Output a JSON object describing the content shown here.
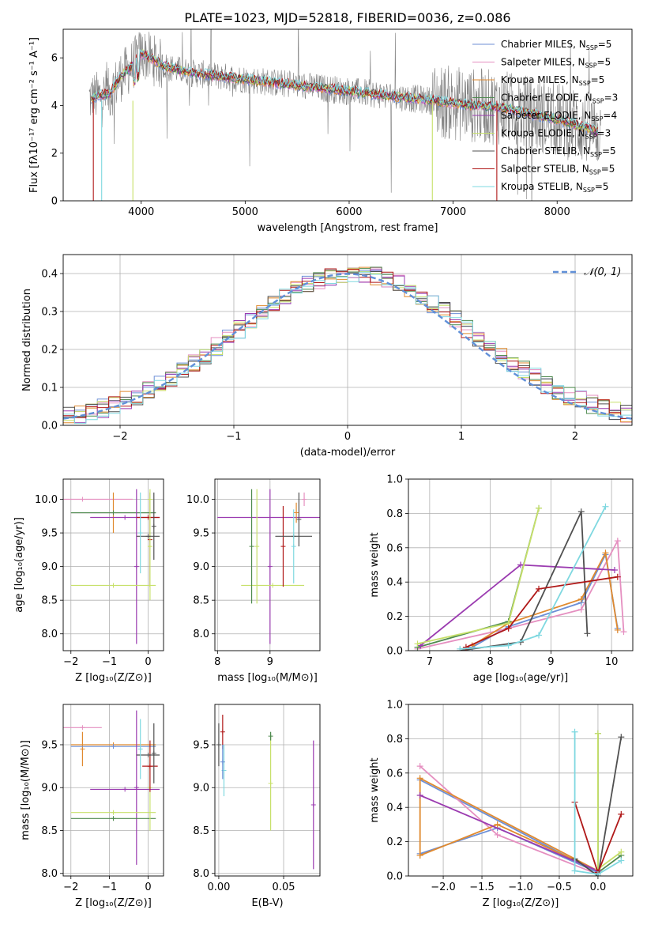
{
  "figure_title": "PLATE=1023, MJD=52818, FIBERID=0036, z=0.086",
  "colors": {
    "chabrier_miles": "#6c8fd6",
    "salpeter_miles": "#e58fc0",
    "kroupa_miles": "#e08a2f",
    "chabrier_elodie": "#4e8a4e",
    "salpeter_elodie": "#9b3bb0",
    "kroupa_elodie": "#c7e06a",
    "chabrier_stelib": "#505050",
    "salpeter_stelib": "#b01818",
    "kroupa_stelib": "#7fd8e0",
    "data": "#808080",
    "normal": "#6190d8"
  },
  "chart_data": [
    {
      "id": "spectrum",
      "type": "line",
      "xlabel": "wavelength [Angstrom, rest frame]",
      "ylabel": "Flux [fλ10⁻¹⁷ erg cm⁻² s⁻¹ A⁻¹]",
      "xlim": [
        3250,
        8720
      ],
      "ylim": [
        0,
        7.2
      ],
      "xticks": [
        4000,
        5000,
        6000,
        7000,
        8000
      ],
      "yticks": [
        0,
        2,
        4,
        6
      ],
      "legend_position": "upper right",
      "legend": [
        {
          "key": "chabrier_miles",
          "label": "Chabrier MILES, N",
          "sub": "SSP",
          "suffix": "=5"
        },
        {
          "key": "salpeter_miles",
          "label": "Salpeter MILES, N",
          "sub": "SSP",
          "suffix": "=5"
        },
        {
          "key": "kroupa_miles",
          "label": "Kroupa MILES, N",
          "sub": "SSP",
          "suffix": "=5"
        },
        {
          "key": "chabrier_elodie",
          "label": "Chabrier ELODIE, N",
          "sub": "SSP",
          "suffix": "=3"
        },
        {
          "key": "salpeter_elodie",
          "label": "Salpeter ELODIE, N",
          "sub": "SSP",
          "suffix": "=4"
        },
        {
          "key": "kroupa_elodie",
          "label": "Kroupa ELODIE, N",
          "sub": "SSP",
          "suffix": "=3"
        },
        {
          "key": "chabrier_stelib",
          "label": "Chabrier STELIB, N",
          "sub": "SSP",
          "suffix": "=5"
        },
        {
          "key": "salpeter_stelib",
          "label": "Salpeter STELIB, N",
          "sub": "SSP",
          "suffix": "=5"
        },
        {
          "key": "kroupa_stelib",
          "label": "Kroupa STELIB, N",
          "sub": "SSP",
          "suffix": "=5"
        }
      ],
      "continuum": {
        "x": [
          3500,
          3600,
          3700,
          3800,
          3900,
          4000,
          4100,
          4200,
          4300,
          4500,
          4700,
          5000,
          5300,
          5600,
          6000,
          6300,
          6600,
          6900,
          7200,
          7500,
          7800,
          8100,
          8400
        ],
        "y": [
          4.3,
          4.4,
          4.5,
          5.2,
          5.6,
          6.2,
          5.95,
          5.7,
          5.55,
          5.35,
          5.25,
          5.1,
          4.95,
          4.8,
          4.6,
          4.45,
          4.3,
          4.15,
          4.0,
          3.9,
          3.6,
          3.3,
          2.9
        ]
      }
    },
    {
      "id": "residual_histogram",
      "type": "line",
      "xlabel": "(data-model)/error",
      "ylabel": "Normed distribution",
      "xlim": [
        -2.5,
        2.5
      ],
      "ylim": [
        0,
        0.45
      ],
      "xticks": [
        -2,
        -1,
        0,
        1,
        2
      ],
      "yticks": [
        0.0,
        0.1,
        0.2,
        0.3,
        0.4
      ],
      "legend_label": "𝒩(0, 1)",
      "legend_position": "upper right",
      "bin_width": 0.1
    },
    {
      "id": "age_vs_z",
      "type": "scatter",
      "xlabel": "Z [log₁₀(Z/Z⊙)]",
      "ylabel": "age  [log₁₀(age/yr)]",
      "xlim": [
        -2.2,
        0.4
      ],
      "ylim": [
        7.75,
        10.3
      ],
      "xticks": [
        -2,
        -1,
        0
      ],
      "yticks": [
        8.0,
        8.5,
        9.0,
        9.5,
        10.0
      ],
      "points": [
        {
          "s": "salpeter_miles",
          "x": -1.7,
          "xerr": 1.3,
          "y": 10.0,
          "yerr": 0.0
        },
        {
          "s": "kroupa_miles",
          "x": -0.9,
          "xerr": 1.1,
          "y": 9.8,
          "yerr": 0.3
        },
        {
          "s": "chabrier_miles",
          "x": -0.9,
          "xerr": 1.1,
          "y": 9.8,
          "yerr": 0.0
        },
        {
          "s": "chabrier_elodie",
          "x": -0.9,
          "xerr": 1.1,
          "y": 9.8,
          "yerr": 0.0
        },
        {
          "s": "salpeter_elodie",
          "x": -0.6,
          "xerr": 0.9,
          "y": 9.73,
          "yerr": 0.0
        },
        {
          "s": "salpeter_elodie",
          "x": -0.3,
          "xerr": 0.0,
          "y": 9.0,
          "yerr": 1.15
        },
        {
          "s": "salpeter_stelib",
          "x": 0.05,
          "xerr": 0.0,
          "y": 9.4,
          "yerr": 0.7
        },
        {
          "s": "salpeter_stelib",
          "x": 0.0,
          "xerr": 0.3,
          "y": 9.73,
          "yerr": 0.0
        },
        {
          "s": "kroupa_elodie",
          "x": -0.9,
          "xerr": 1.1,
          "y": 8.72,
          "yerr": 0.0
        },
        {
          "s": "kroupa_elodie",
          "x": 0.05,
          "xerr": 0.0,
          "y": 9.3,
          "yerr": 0.8
        },
        {
          "s": "chabrier_stelib",
          "x": 0.0,
          "xerr": 0.3,
          "y": 9.45,
          "yerr": 0.0
        },
        {
          "s": "chabrier_stelib",
          "x": 0.15,
          "xerr": 0.0,
          "y": 9.6,
          "yerr": 0.5
        },
        {
          "s": "kroupa_stelib",
          "x": -0.2,
          "xerr": 0.0,
          "y": 9.5,
          "yerr": 0.6
        },
        {
          "s": "kroupa_elodie",
          "x": 0.05,
          "xerr": 0.0,
          "y": 10.0,
          "yerr": 0.15
        }
      ]
    },
    {
      "id": "age_vs_mass",
      "type": "scatter",
      "xlabel": "mass [log₁₀(M/M⊙)]",
      "ylabel": "",
      "xlim": [
        7.95,
        9.95
      ],
      "ylim": [
        7.75,
        10.3
      ],
      "xticks": [
        8,
        9
      ],
      "yticks": [
        8.0,
        8.5,
        9.0,
        9.5,
        10.0
      ],
      "points": [
        {
          "s": "salpeter_elodie",
          "x": 9.0,
          "xerr": 1.0,
          "y": 9.73,
          "yerr": 0.0
        },
        {
          "s": "salpeter_elodie",
          "x": 9.0,
          "xerr": 0.0,
          "y": 9.0,
          "yerr": 1.15
        },
        {
          "s": "kroupa_elodie",
          "x": 9.05,
          "xerr": 0.6,
          "y": 8.72,
          "yerr": 0.0
        },
        {
          "s": "chabrier_elodie",
          "x": 8.65,
          "xerr": 0.0,
          "y": 9.3,
          "yerr": 0.85
        },
        {
          "s": "kroupa_elodie",
          "x": 8.75,
          "xerr": 0.0,
          "y": 9.3,
          "yerr": 0.85
        },
        {
          "s": "salpeter_stelib",
          "x": 9.25,
          "xerr": 0.0,
          "y": 9.3,
          "yerr": 0.6
        },
        {
          "s": "chabrier_stelib",
          "x": 9.45,
          "xerr": 0.35,
          "y": 9.45,
          "yerr": 0.0
        },
        {
          "s": "kroupa_stelib",
          "x": 9.45,
          "xerr": 0.0,
          "y": 9.3,
          "yerr": 0.55
        },
        {
          "s": "chabrier_stelib",
          "x": 9.55,
          "xerr": 0.0,
          "y": 9.7,
          "yerr": 0.4
        },
        {
          "s": "salpeter_miles",
          "x": 9.65,
          "xerr": 0.0,
          "y": 10.0,
          "yerr": 0.1
        },
        {
          "s": "kroupa_miles",
          "x": 9.5,
          "xerr": 0.0,
          "y": 9.8,
          "yerr": 0.15
        }
      ]
    },
    {
      "id": "mass_weight_vs_age",
      "type": "line",
      "xlabel": "age  [log₁₀(age/yr)]",
      "ylabel": "mass weight",
      "xlim": [
        6.65,
        10.35
      ],
      "ylim": [
        0,
        1.0
      ],
      "xticks": [
        7,
        8,
        9,
        10
      ],
      "yticks": [
        0.0,
        0.2,
        0.4,
        0.6,
        0.8,
        1.0
      ],
      "series": [
        {
          "s": "chabrier_miles",
          "x": [
            7.7,
            8.3,
            9.5,
            9.9,
            10.1
          ],
          "y": [
            0.02,
            0.14,
            0.28,
            0.56,
            0.13
          ]
        },
        {
          "s": "salpeter_miles",
          "x": [
            6.8,
            8.3,
            9.5,
            10.1,
            10.2
          ],
          "y": [
            0.01,
            0.13,
            0.24,
            0.64,
            0.11
          ]
        },
        {
          "s": "kroupa_miles",
          "x": [
            7.7,
            8.3,
            9.5,
            9.9,
            10.1
          ],
          "y": [
            0.03,
            0.16,
            0.3,
            0.57,
            0.12
          ]
        },
        {
          "s": "chabrier_elodie",
          "x": [
            6.8,
            8.3,
            8.8
          ],
          "y": [
            0.02,
            0.17,
            0.83
          ]
        },
        {
          "s": "salpeter_elodie",
          "x": [
            6.85,
            8.5,
            10.05
          ],
          "y": [
            0.03,
            0.5,
            0.47
          ]
        },
        {
          "s": "kroupa_elodie",
          "x": [
            6.8,
            8.3,
            8.8
          ],
          "y": [
            0.04,
            0.16,
            0.83
          ]
        },
        {
          "s": "chabrier_stelib",
          "x": [
            7.5,
            8.5,
            9.5,
            9.6
          ],
          "y": [
            0.0,
            0.05,
            0.81,
            0.1
          ]
        },
        {
          "s": "salpeter_stelib",
          "x": [
            7.6,
            8.3,
            8.8,
            10.1
          ],
          "y": [
            0.02,
            0.13,
            0.36,
            0.43
          ]
        },
        {
          "s": "kroupa_stelib",
          "x": [
            7.5,
            8.3,
            8.8,
            9.9
          ],
          "y": [
            0.01,
            0.03,
            0.09,
            0.84
          ]
        }
      ]
    },
    {
      "id": "mass_vs_z",
      "type": "scatter",
      "xlabel": "Z [log₁₀(Z/Z⊙)]",
      "ylabel": "mass [log₁₀(M/M⊙)]",
      "xlim": [
        -2.2,
        0.4
      ],
      "ylim": [
        7.97,
        9.97
      ],
      "xticks": [
        -2,
        -1,
        0
      ],
      "yticks": [
        8.0,
        8.5,
        9.0,
        9.5
      ],
      "points": [
        {
          "s": "salpeter_miles",
          "x": -1.7,
          "xerr": 0.5,
          "y": 9.7,
          "yerr": 0.0
        },
        {
          "s": "kroupa_miles",
          "x": -0.9,
          "xerr": 1.1,
          "y": 9.5,
          "yerr": 0.0
        },
        {
          "s": "kroupa_miles",
          "x": -1.7,
          "xerr": 0.0,
          "y": 9.45,
          "yerr": 0.2
        },
        {
          "s": "chabrier_miles",
          "x": -0.9,
          "xerr": 1.1,
          "y": 9.48,
          "yerr": 0.0
        },
        {
          "s": "salpeter_elodie",
          "x": -0.6,
          "xerr": 0.9,
          "y": 8.98,
          "yerr": 0.0
        },
        {
          "s": "salpeter_elodie",
          "x": -0.3,
          "xerr": 0.0,
          "y": 9.0,
          "yerr": 0.9
        },
        {
          "s": "kroupa_elodie",
          "x": -0.9,
          "xerr": 1.1,
          "y": 8.71,
          "yerr": 0.0
        },
        {
          "s": "chabrier_elodie",
          "x": -0.9,
          "xerr": 1.1,
          "y": 8.64,
          "yerr": 0.0
        },
        {
          "s": "kroupa_elodie",
          "x": 0.05,
          "xerr": 0.0,
          "y": 9.0,
          "yerr": 0.5
        },
        {
          "s": "salpeter_stelib",
          "x": 0.05,
          "xerr": 0.2,
          "y": 9.25,
          "yerr": 0.0
        },
        {
          "s": "salpeter_stelib",
          "x": 0.05,
          "xerr": 0.0,
          "y": 9.25,
          "yerr": 0.3
        },
        {
          "s": "chabrier_stelib",
          "x": 0.0,
          "xerr": 0.3,
          "y": 9.38,
          "yerr": 0.0
        },
        {
          "s": "chabrier_stelib",
          "x": 0.15,
          "xerr": 0.0,
          "y": 9.4,
          "yerr": 0.35
        },
        {
          "s": "kroupa_stelib",
          "x": -0.2,
          "xerr": 0.0,
          "y": 9.45,
          "yerr": 0.35
        }
      ]
    },
    {
      "id": "mass_vs_ebv",
      "type": "scatter",
      "xlabel": "E(B-V)",
      "ylabel": "",
      "xlim": [
        -0.003,
        0.078
      ],
      "ylim": [
        7.97,
        9.97
      ],
      "xticks": [
        0.0,
        0.05
      ],
      "xticklabels": [
        "0.00",
        "0.05"
      ],
      "yticks": [
        8.0,
        8.5,
        9.0,
        9.5
      ],
      "points": [
        {
          "s": "chabrier_stelib",
          "x": 0.0,
          "xerr": 0.0,
          "y": 9.5,
          "yerr": 0.25
        },
        {
          "s": "salpeter_stelib",
          "x": 0.003,
          "xerr": 0.0,
          "y": 9.65,
          "yerr": 0.2
        },
        {
          "s": "kroupa_stelib",
          "x": 0.004,
          "xerr": 0.0,
          "y": 9.2,
          "yerr": 0.3
        },
        {
          "s": "chabrier_miles",
          "x": 0.003,
          "xerr": 0.0,
          "y": 9.3,
          "yerr": 0.2
        },
        {
          "s": "kroupa_elodie",
          "x": 0.04,
          "xerr": 0.0,
          "y": 9.05,
          "yerr": 0.55
        },
        {
          "s": "chabrier_elodie",
          "x": 0.04,
          "xerr": 0.0,
          "y": 9.6,
          "yerr": 0.05
        },
        {
          "s": "salpeter_elodie",
          "x": 0.073,
          "xerr": 0.0,
          "y": 8.8,
          "yerr": 0.75
        }
      ]
    },
    {
      "id": "mass_weight_vs_z",
      "type": "line",
      "xlabel": "Z [log₁₀(Z/Z⊙)]",
      "ylabel": "mass weight",
      "xlim": [
        -2.45,
        0.45
      ],
      "ylim": [
        0,
        1.0
      ],
      "xticks": [
        -2.0,
        -1.5,
        -1.0,
        -0.5,
        0.0
      ],
      "xticklabels": [
        "−2.0",
        "−1.5",
        "−1.0",
        "−0.5",
        "0.0"
      ],
      "yticks": [
        0.0,
        0.2,
        0.4,
        0.6,
        0.8,
        1.0
      ],
      "series": [
        {
          "s": "chabrier_miles",
          "x": [
            -2.3,
            -1.3,
            0.0,
            -2.3
          ],
          "y": [
            0.13,
            0.28,
            0.02,
            0.56
          ]
        },
        {
          "s": "salpeter_miles",
          "x": [
            -2.3,
            -1.3,
            0.0
          ],
          "y": [
            0.64,
            0.24,
            0.01
          ]
        },
        {
          "s": "kroupa_miles",
          "x": [
            -2.3,
            -1.3,
            0.0,
            -2.3,
            -2.3
          ],
          "y": [
            0.12,
            0.3,
            0.03,
            0.57,
            0.12
          ]
        },
        {
          "s": "chabrier_elodie",
          "x": [
            0.0,
            0.0,
            0.3
          ],
          "y": [
            0.83,
            0.02,
            0.12
          ]
        },
        {
          "s": "salpeter_elodie",
          "x": [
            -2.3,
            0.0
          ],
          "y": [
            0.47,
            0.03
          ]
        },
        {
          "s": "kroupa_elodie",
          "x": [
            0.0,
            0.0,
            0.3
          ],
          "y": [
            0.83,
            0.04,
            0.14
          ]
        },
        {
          "s": "chabrier_stelib",
          "x": [
            -0.3,
            0.0,
            0.3
          ],
          "y": [
            0.1,
            0.0,
            0.81
          ]
        },
        {
          "s": "salpeter_stelib",
          "x": [
            -0.3,
            0.0,
            0.3
          ],
          "y": [
            0.43,
            0.02,
            0.36
          ]
        },
        {
          "s": "kroupa_stelib",
          "x": [
            -0.3,
            -0.3,
            0.0,
            0.3
          ],
          "y": [
            0.84,
            0.03,
            0.01,
            0.09
          ]
        }
      ]
    }
  ]
}
